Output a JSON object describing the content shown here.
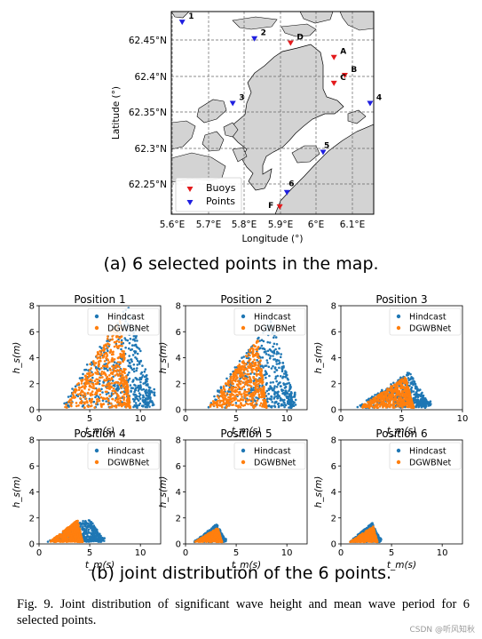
{
  "map": {
    "xlabel": "Longitude (°)",
    "ylabel": "Latitude (°)",
    "x_ticks": [
      "5.6°E",
      "5.7°E",
      "5.8°E",
      "5.9°E",
      "6°E",
      "6.1°E"
    ],
    "y_ticks": [
      "62.45°N",
      "62.4°N",
      "62.35°N",
      "62.3°N",
      "62.25°N"
    ],
    "lon_range": [
      5.6,
      6.16
    ],
    "lat_range": [
      62.208,
      62.49
    ],
    "buoys": [
      {
        "label": "A",
        "lon": 6.05,
        "lat": 62.426
      },
      {
        "label": "B",
        "lon": 6.08,
        "lat": 62.401
      },
      {
        "label": "C",
        "lon": 6.05,
        "lat": 62.39
      },
      {
        "label": "D",
        "lon": 5.93,
        "lat": 62.446
      },
      {
        "label": "F",
        "lon": 5.9,
        "lat": 62.218
      }
    ],
    "points": [
      {
        "label": "1",
        "lon": 5.63,
        "lat": 62.475
      },
      {
        "label": "2",
        "lon": 5.83,
        "lat": 62.452
      },
      {
        "label": "3",
        "lon": 5.77,
        "lat": 62.362
      },
      {
        "label": "4",
        "lon": 6.15,
        "lat": 62.362
      },
      {
        "label": "5",
        "lon": 6.02,
        "lat": 62.294
      },
      {
        "label": "6",
        "lon": 5.92,
        "lat": 62.238
      }
    ],
    "legend": {
      "buoys": "Buoys",
      "points": "Points"
    },
    "colors": {
      "land": "#d3d3d3",
      "buoy": "#e31a1c",
      "point": "#1f1fe0"
    }
  },
  "caption_a": "(a) 6 selected points in the map.",
  "caption_b": "(b) joint distribution of the 6 points.",
  "fig_caption": "Fig. 9.  Joint distribution of significant wave height and mean wave period for 6 selected points.",
  "watermark": "CSDN @听风知秋",
  "chart_data": [
    {
      "type": "scatter",
      "title": "Position 1",
      "xlabel": "t_m(s)",
      "ylabel": "h_s(m)",
      "xlim": [
        0,
        12
      ],
      "ylim": [
        0,
        8
      ],
      "xticks": [
        "0",
        "5",
        "10"
      ],
      "yticks": [
        "0",
        "2",
        "4",
        "6",
        "8"
      ],
      "series": [
        {
          "name": "Hindcast",
          "color": "#1f77b4",
          "tm_range": [
            1.8,
            11.5
          ],
          "hs_max": 8.0
        },
        {
          "name": "DGWBNet",
          "color": "#ff7f0e",
          "tm_range": [
            2.3,
            9.0
          ],
          "hs_max": 7.0
        }
      ]
    },
    {
      "type": "scatter",
      "title": "Position 2",
      "xlabel": "t_m(s)",
      "ylabel": "h_s(m)",
      "xlim": [
        0,
        12
      ],
      "ylim": [
        0,
        8
      ],
      "xticks": [
        "0",
        "5",
        "10"
      ],
      "yticks": [
        "0",
        "2",
        "4",
        "6",
        "8"
      ],
      "series": [
        {
          "name": "Hindcast",
          "color": "#1f77b4",
          "tm_range": [
            1.8,
            11.0
          ],
          "hs_max": 6.8
        },
        {
          "name": "DGWBNet",
          "color": "#ff7f0e",
          "tm_range": [
            2.2,
            8.0
          ],
          "hs_max": 5.3
        }
      ]
    },
    {
      "type": "scatter",
      "title": "Position 3",
      "xlabel": "t_m(s)",
      "ylabel": "h_s(m)",
      "xlim": [
        0,
        10
      ],
      "ylim": [
        0,
        8
      ],
      "xticks": [
        "0",
        "5",
        "10"
      ],
      "yticks": [
        "0",
        "2",
        "4",
        "6",
        "8"
      ],
      "series": [
        {
          "name": "Hindcast",
          "color": "#1f77b4",
          "tm_range": [
            1.2,
            7.4
          ],
          "hs_max": 2.8
        },
        {
          "name": "DGWBNet",
          "color": "#ff7f0e",
          "tm_range": [
            1.5,
            6.0
          ],
          "hs_max": 2.4
        }
      ]
    },
    {
      "type": "scatter",
      "title": "Position 4",
      "xlabel": "t_m(s)",
      "ylabel": "h_s(m)",
      "xlim": [
        0,
        12
      ],
      "ylim": [
        0,
        8
      ],
      "xticks": [
        "0",
        "5",
        "10"
      ],
      "yticks": [
        "0",
        "2",
        "4",
        "6",
        "8"
      ],
      "series": [
        {
          "name": "Hindcast",
          "color": "#1f77b4",
          "tm_range": [
            0.8,
            6.5
          ],
          "hs_max": 1.9
        },
        {
          "name": "DGWBNet",
          "color": "#ff7f0e",
          "tm_range": [
            1.0,
            4.3
          ],
          "hs_max": 1.7
        }
      ]
    },
    {
      "type": "scatter",
      "title": "Position 5",
      "xlabel": "t_m(s)",
      "ylabel": "h_s(m)",
      "xlim": [
        0,
        12
      ],
      "ylim": [
        0,
        8
      ],
      "xticks": [
        "0",
        "5",
        "10"
      ],
      "yticks": [
        "0",
        "2",
        "4",
        "6",
        "8"
      ],
      "series": [
        {
          "name": "Hindcast",
          "color": "#1f77b4",
          "tm_range": [
            0.8,
            4.0
          ],
          "hs_max": 1.4
        },
        {
          "name": "DGWBNet",
          "color": "#ff7f0e",
          "tm_range": [
            0.9,
            3.6
          ],
          "hs_max": 1.1
        }
      ]
    },
    {
      "type": "scatter",
      "title": "Position 6",
      "xlabel": "t_m(s)",
      "ylabel": "h_s(m)",
      "xlim": [
        0,
        12
      ],
      "ylim": [
        0,
        8
      ],
      "xticks": [
        "0",
        "5",
        "10"
      ],
      "yticks": [
        "0",
        "2",
        "4",
        "6",
        "8"
      ],
      "series": [
        {
          "name": "Hindcast",
          "color": "#1f77b4",
          "tm_range": [
            0.8,
            4.0
          ],
          "hs_max": 1.5
        },
        {
          "name": "DGWBNet",
          "color": "#ff7f0e",
          "tm_range": [
            0.9,
            3.6
          ],
          "hs_max": 1.2
        }
      ]
    }
  ]
}
